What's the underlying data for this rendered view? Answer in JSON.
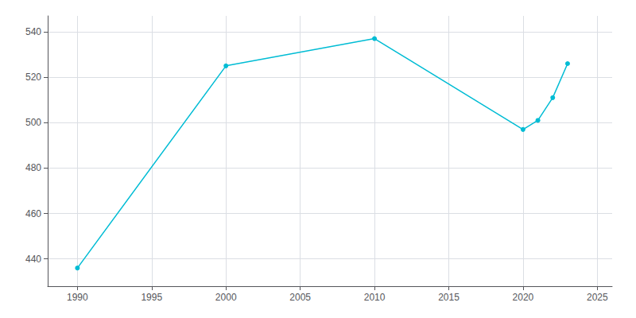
{
  "chart_data": {
    "type": "line",
    "x": [
      1990,
      2000,
      2010,
      2020,
      2021,
      2022,
      2023
    ],
    "values": [
      436,
      525,
      537,
      497,
      501,
      511,
      526
    ],
    "color": "#00BCD4",
    "marker": "circle",
    "xlim": [
      1988,
      2026
    ],
    "ylim": [
      428,
      547
    ],
    "xticks": [
      1990,
      1995,
      2000,
      2005,
      2010,
      2015,
      2020,
      2025
    ],
    "yticks": [
      440,
      460,
      480,
      500,
      520,
      540
    ],
    "grid": true
  }
}
